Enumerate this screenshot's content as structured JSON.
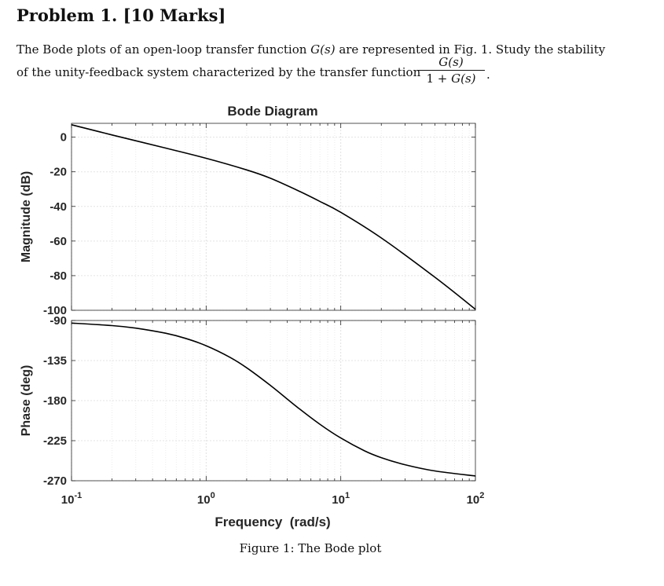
{
  "problem": {
    "title": "Problem 1. [10 Marks]",
    "line1_a": "The Bode plots of an open-loop transfer function ",
    "line1_fn": "G(s)",
    "line1_b": " are represented in Fig. 1. Study the stability",
    "line2": "of the unity-feedback system characterized by the transfer function",
    "frac_num": "G(s)",
    "frac_den_a": "1 + ",
    "frac_den_b": "G(s)",
    "frac_end": "."
  },
  "figure": {
    "caption": "Figure 1: The Bode plot"
  },
  "chart_data": {
    "type": "line",
    "title": "Bode Diagram",
    "xlabel": "Frequency  (rad/s)",
    "x_scale": "log",
    "xlim": [
      0.1,
      100
    ],
    "x_ticks": [
      {
        "value": 0.1,
        "base": "10",
        "exp": "-1"
      },
      {
        "value": 1,
        "base": "10",
        "exp": "0"
      },
      {
        "value": 10,
        "base": "10",
        "exp": "1"
      },
      {
        "value": 100,
        "base": "10",
        "exp": "2"
      }
    ],
    "grid": true,
    "panels": [
      {
        "name": "magnitude",
        "ylabel": "Magnitude (dB)",
        "ylim": [
          -100,
          8
        ],
        "y_ticks": [
          "0",
          "-20",
          "-40",
          "-60",
          "-80",
          "-100"
        ],
        "y_tick_values": [
          0,
          -20,
          -40,
          -60,
          -80,
          -100
        ],
        "series": [
          {
            "x": [
              0.1,
              0.2,
              0.5,
              1,
              2,
              3,
              5,
              7,
              10,
              20,
              50,
              100
            ],
            "y": [
              7.2,
              1.3,
              -6.3,
              -12.2,
              -18.9,
              -23.7,
              -31.5,
              -37.1,
              -43.4,
              -58.2,
              -80.9,
              -99.4
            ]
          }
        ]
      },
      {
        "name": "phase",
        "ylabel": "Phase (deg)",
        "ylim": [
          -270,
          -90
        ],
        "y_ticks": [
          "-90",
          "-135",
          "-180",
          "-225",
          "-270"
        ],
        "y_tick_values": [
          -90,
          -135,
          -180,
          -225,
          -270
        ],
        "series": [
          {
            "x": [
              0.1,
              0.2,
              0.3,
              0.5,
              0.7,
              1,
              1.5,
              2,
              3,
              4,
              5,
              7,
              10,
              15,
              20,
              30,
              50,
              100
            ],
            "y": [
              -92.9,
              -95.7,
              -98.6,
              -104.3,
              -110.0,
              -118.3,
              -131.3,
              -143.1,
              -162.9,
              -178.2,
              -190.0,
              -206.6,
              -222.0,
              -236.4,
              -244.1,
              -252.0,
              -259.0,
              -264.6
            ]
          }
        ]
      }
    ]
  }
}
